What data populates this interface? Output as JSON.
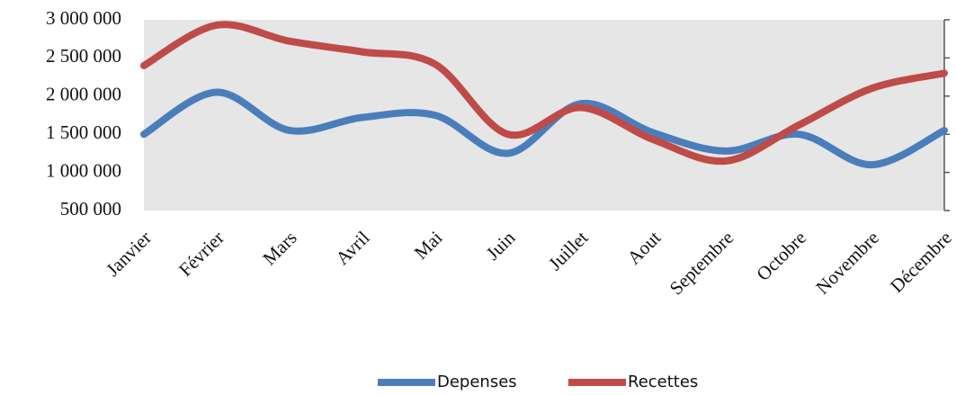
{
  "chart_data": {
    "type": "line",
    "categories": [
      "Janvier",
      "Février",
      "Mars",
      "Avril",
      "Mai",
      "Juin",
      "Juillet",
      "Aout",
      "Septembre",
      "Octobre",
      "Novembre",
      "Décembre"
    ],
    "series": [
      {
        "name": "Depenses",
        "color": "#4a7ebb",
        "values": [
          1500000,
          2050000,
          1550000,
          1720000,
          1750000,
          1250000,
          1900000,
          1520000,
          1280000,
          1500000,
          1100000,
          1550000
        ]
      },
      {
        "name": "Recettes",
        "color": "#be4b48",
        "values": [
          2400000,
          2930000,
          2720000,
          2580000,
          2420000,
          1500000,
          1850000,
          1430000,
          1150000,
          1620000,
          2100000,
          2300000
        ]
      }
    ],
    "ylim": [
      500000,
      3000000
    ],
    "yticks": [
      {
        "value": 500000,
        "label": "500 000"
      },
      {
        "value": 1000000,
        "label": "1 000 000"
      },
      {
        "value": 1500000,
        "label": "1 500 000"
      },
      {
        "value": 2000000,
        "label": "2 000 000"
      },
      {
        "value": 2500000,
        "label": "2 500 000"
      },
      {
        "value": 3000000,
        "label": "3 000 000"
      }
    ],
    "smooth": true,
    "legend": "bottom"
  }
}
